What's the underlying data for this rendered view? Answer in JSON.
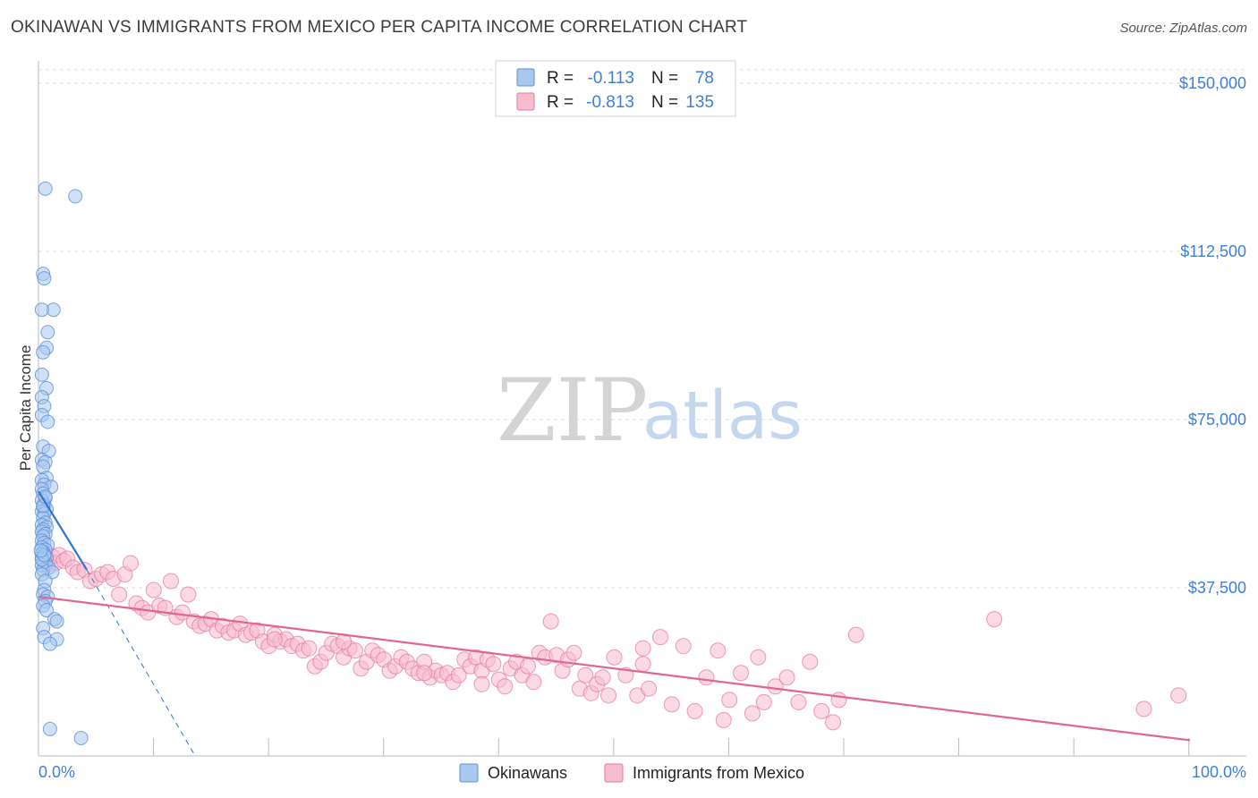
{
  "header": {
    "title": "OKINAWAN VS IMMIGRANTS FROM MEXICO PER CAPITA INCOME CORRELATION CHART",
    "source": "Source: ZipAtlas.com"
  },
  "watermark": {
    "zip": "ZIP",
    "atlas": "atlas"
  },
  "legend_top": {
    "rows": [
      {
        "r_label": "R =",
        "r_value": "-0.113",
        "n_label": "N =",
        "n_value": "78",
        "color": "#a9c8f0",
        "stroke": "#5b8fd6"
      },
      {
        "r_label": "R =",
        "r_value": "-0.813",
        "n_label": "N =",
        "n_value": "135",
        "color": "#f7bcd0",
        "stroke": "#e57aa0"
      }
    ]
  },
  "legend_bottom": {
    "items": [
      {
        "label": "Okinawans",
        "color": "#a9c8f0",
        "stroke": "#5b8fd6"
      },
      {
        "label": "Immigrants from Mexico",
        "color": "#f7bcd0",
        "stroke": "#e57aa0"
      }
    ]
  },
  "chart_data": {
    "type": "scatter",
    "title": "OKINAWAN VS IMMIGRANTS FROM MEXICO PER CAPITA INCOME CORRELATION CHART",
    "xlabel": "",
    "ylabel": "Per Capita Income",
    "xlim": [
      0,
      100
    ],
    "ylim": [
      0,
      153000
    ],
    "x_tick_labels": [
      "0.0%",
      "100.0%"
    ],
    "y_ticks": [
      37500,
      75000,
      112500,
      150000
    ],
    "y_tick_labels": [
      "$37,500",
      "$75,000",
      "$112,500",
      "$150,000"
    ],
    "grid": true,
    "colors": {
      "okinawan": "#5b8fd6",
      "okinawan_fill": "#a9c8f0",
      "mexico": "#e57aa0",
      "mexico_fill": "#f7bcd0",
      "axis_text": "#3f7fd6"
    },
    "series": [
      {
        "name": "Okinawans",
        "r": -0.113,
        "n": 78,
        "points": [
          [
            0.6,
            126500
          ],
          [
            3.2,
            124800
          ],
          [
            0.4,
            107500
          ],
          [
            0.5,
            106500
          ],
          [
            1.3,
            99500
          ],
          [
            0.3,
            99500
          ],
          [
            0.8,
            94500
          ],
          [
            0.7,
            91000
          ],
          [
            0.4,
            90000
          ],
          [
            0.3,
            85000
          ],
          [
            0.7,
            82000
          ],
          [
            0.3,
            80000
          ],
          [
            0.5,
            78000
          ],
          [
            0.3,
            76000
          ],
          [
            0.8,
            74500
          ],
          [
            0.4,
            69000
          ],
          [
            0.9,
            68000
          ],
          [
            0.3,
            66000
          ],
          [
            0.6,
            65500
          ],
          [
            0.4,
            64500
          ],
          [
            0.7,
            62000
          ],
          [
            0.3,
            61500
          ],
          [
            0.5,
            60500
          ],
          [
            1.1,
            60000
          ],
          [
            0.3,
            59500
          ],
          [
            0.4,
            58500
          ],
          [
            0.6,
            57500
          ],
          [
            0.3,
            57000
          ],
          [
            0.5,
            56000
          ],
          [
            0.4,
            55500
          ],
          [
            0.7,
            55000
          ],
          [
            0.3,
            54500
          ],
          [
            0.5,
            54000
          ],
          [
            0.4,
            53000
          ],
          [
            0.6,
            52000
          ],
          [
            0.3,
            51500
          ],
          [
            0.7,
            51000
          ],
          [
            0.4,
            50500
          ],
          [
            0.3,
            50000
          ],
          [
            0.6,
            49500
          ],
          [
            0.4,
            49000
          ],
          [
            0.3,
            48000
          ],
          [
            0.5,
            47500
          ],
          [
            0.8,
            47000
          ],
          [
            0.3,
            46500
          ],
          [
            0.6,
            46000
          ],
          [
            0.4,
            45500
          ],
          [
            0.3,
            45000
          ],
          [
            0.5,
            44500
          ],
          [
            0.7,
            44200
          ],
          [
            0.3,
            44000
          ],
          [
            0.4,
            43500
          ],
          [
            0.6,
            43000
          ],
          [
            0.3,
            42500
          ],
          [
            0.9,
            42000
          ],
          [
            0.4,
            41500
          ],
          [
            1.2,
            41000
          ],
          [
            0.3,
            40500
          ],
          [
            0.6,
            39000
          ],
          [
            0.5,
            37000
          ],
          [
            0.4,
            36000
          ],
          [
            0.8,
            35500
          ],
          [
            0.6,
            34500
          ],
          [
            0.4,
            33500
          ],
          [
            0.7,
            32500
          ],
          [
            1.4,
            30500
          ],
          [
            1.6,
            30000
          ],
          [
            0.4,
            28500
          ],
          [
            0.5,
            26500
          ],
          [
            1.6,
            26000
          ],
          [
            1.0,
            25000
          ],
          [
            0.3,
            43800
          ],
          [
            0.5,
            44800
          ],
          [
            0.2,
            45800
          ],
          [
            1.0,
            6000
          ],
          [
            3.7,
            4000
          ],
          [
            0.4,
            55800
          ],
          [
            0.6,
            57800
          ]
        ]
      },
      {
        "name": "Immigrants from Mexico",
        "r": -0.813,
        "n": 135,
        "points": [
          [
            0.5,
            45000
          ],
          [
            0.8,
            44000
          ],
          [
            1.2,
            44500
          ],
          [
            1.5,
            43000
          ],
          [
            0.6,
            42500
          ],
          [
            1.8,
            44800
          ],
          [
            2.2,
            43500
          ],
          [
            2.5,
            44000
          ],
          [
            3.0,
            42000
          ],
          [
            3.4,
            41000
          ],
          [
            4.0,
            41500
          ],
          [
            4.5,
            39000
          ],
          [
            5.0,
            39500
          ],
          [
            5.5,
            40500
          ],
          [
            6.0,
            41000
          ],
          [
            6.5,
            39500
          ],
          [
            7.0,
            36000
          ],
          [
            7.5,
            40500
          ],
          [
            8.0,
            43000
          ],
          [
            8.5,
            34000
          ],
          [
            9.0,
            33000
          ],
          [
            9.5,
            32000
          ],
          [
            10.0,
            37000
          ],
          [
            10.5,
            33500
          ],
          [
            11.0,
            33000
          ],
          [
            11.5,
            39000
          ],
          [
            12.0,
            31000
          ],
          [
            12.5,
            32000
          ],
          [
            13.0,
            36000
          ],
          [
            13.5,
            30000
          ],
          [
            14.0,
            29000
          ],
          [
            14.5,
            29500
          ],
          [
            15.0,
            30500
          ],
          [
            15.5,
            28000
          ],
          [
            16.0,
            29000
          ],
          [
            16.5,
            27500
          ],
          [
            17.0,
            28000
          ],
          [
            17.5,
            29500
          ],
          [
            18.0,
            27000
          ],
          [
            18.5,
            27500
          ],
          [
            19.0,
            28000
          ],
          [
            19.5,
            25500
          ],
          [
            20.0,
            24500
          ],
          [
            20.5,
            27000
          ],
          [
            21.0,
            25500
          ],
          [
            21.5,
            26000
          ],
          [
            22.0,
            24500
          ],
          [
            22.5,
            25000
          ],
          [
            23.0,
            23500
          ],
          [
            23.5,
            24000
          ],
          [
            24.0,
            20000
          ],
          [
            24.5,
            21000
          ],
          [
            25.0,
            23000
          ],
          [
            25.5,
            25000
          ],
          [
            26.0,
            24500
          ],
          [
            26.5,
            22000
          ],
          [
            27.0,
            24000
          ],
          [
            27.5,
            23500
          ],
          [
            28.0,
            19500
          ],
          [
            28.5,
            21000
          ],
          [
            29.0,
            23500
          ],
          [
            29.5,
            22500
          ],
          [
            30.0,
            21500
          ],
          [
            30.5,
            19000
          ],
          [
            31.0,
            20000
          ],
          [
            31.5,
            22000
          ],
          [
            32.0,
            21000
          ],
          [
            32.5,
            19500
          ],
          [
            33.0,
            18500
          ],
          [
            33.5,
            21000
          ],
          [
            34.0,
            17500
          ],
          [
            34.5,
            19000
          ],
          [
            35.0,
            18000
          ],
          [
            35.5,
            18500
          ],
          [
            36.0,
            16500
          ],
          [
            36.5,
            18000
          ],
          [
            37.0,
            21500
          ],
          [
            37.5,
            20000
          ],
          [
            38.0,
            22000
          ],
          [
            38.5,
            19000
          ],
          [
            39.0,
            21500
          ],
          [
            39.5,
            20500
          ],
          [
            40.0,
            17000
          ],
          [
            40.5,
            15500
          ],
          [
            41.0,
            19500
          ],
          [
            41.5,
            21000
          ],
          [
            42.0,
            18000
          ],
          [
            42.5,
            20000
          ],
          [
            43.0,
            16500
          ],
          [
            43.5,
            23000
          ],
          [
            44.0,
            22000
          ],
          [
            44.5,
            30000
          ],
          [
            45.0,
            22500
          ],
          [
            45.5,
            19000
          ],
          [
            46.0,
            21500
          ],
          [
            46.5,
            23000
          ],
          [
            47.0,
            15000
          ],
          [
            47.5,
            18000
          ],
          [
            48.0,
            14000
          ],
          [
            48.5,
            16000
          ],
          [
            49.0,
            17500
          ],
          [
            49.5,
            13500
          ],
          [
            50.0,
            22000
          ],
          [
            51.0,
            18000
          ],
          [
            52.0,
            13500
          ],
          [
            52.5,
            20500
          ],
          [
            53.0,
            15000
          ],
          [
            54.0,
            26500
          ],
          [
            55.0,
            11500
          ],
          [
            56.0,
            24500
          ],
          [
            57.0,
            10000
          ],
          [
            58.0,
            17500
          ],
          [
            59.0,
            23500
          ],
          [
            59.5,
            8000
          ],
          [
            60.0,
            12500
          ],
          [
            61.0,
            18500
          ],
          [
            62.0,
            9500
          ],
          [
            62.5,
            22000
          ],
          [
            63.0,
            12000
          ],
          [
            64.0,
            15500
          ],
          [
            65.0,
            17500
          ],
          [
            66.0,
            12000
          ],
          [
            67.0,
            21000
          ],
          [
            68.0,
            10000
          ],
          [
            69.0,
            7500
          ],
          [
            69.5,
            12500
          ],
          [
            83.0,
            30500
          ],
          [
            96.0,
            10500
          ],
          [
            99.0,
            13500
          ],
          [
            71.0,
            27000
          ],
          [
            52.5,
            24000
          ],
          [
            38.5,
            16000
          ],
          [
            26.5,
            25500
          ],
          [
            33.5,
            18500
          ],
          [
            20.5,
            26000
          ]
        ]
      }
    ],
    "trendlines": [
      {
        "series": "Okinawans",
        "solid_from": [
          0,
          59000
        ],
        "solid_to": [
          4.2,
          41500
        ],
        "dashed_to": [
          13.5,
          500
        ]
      },
      {
        "series": "Immigrants from Mexico",
        "from": [
          0,
          35500
        ],
        "to": [
          100,
          3500
        ]
      }
    ]
  }
}
